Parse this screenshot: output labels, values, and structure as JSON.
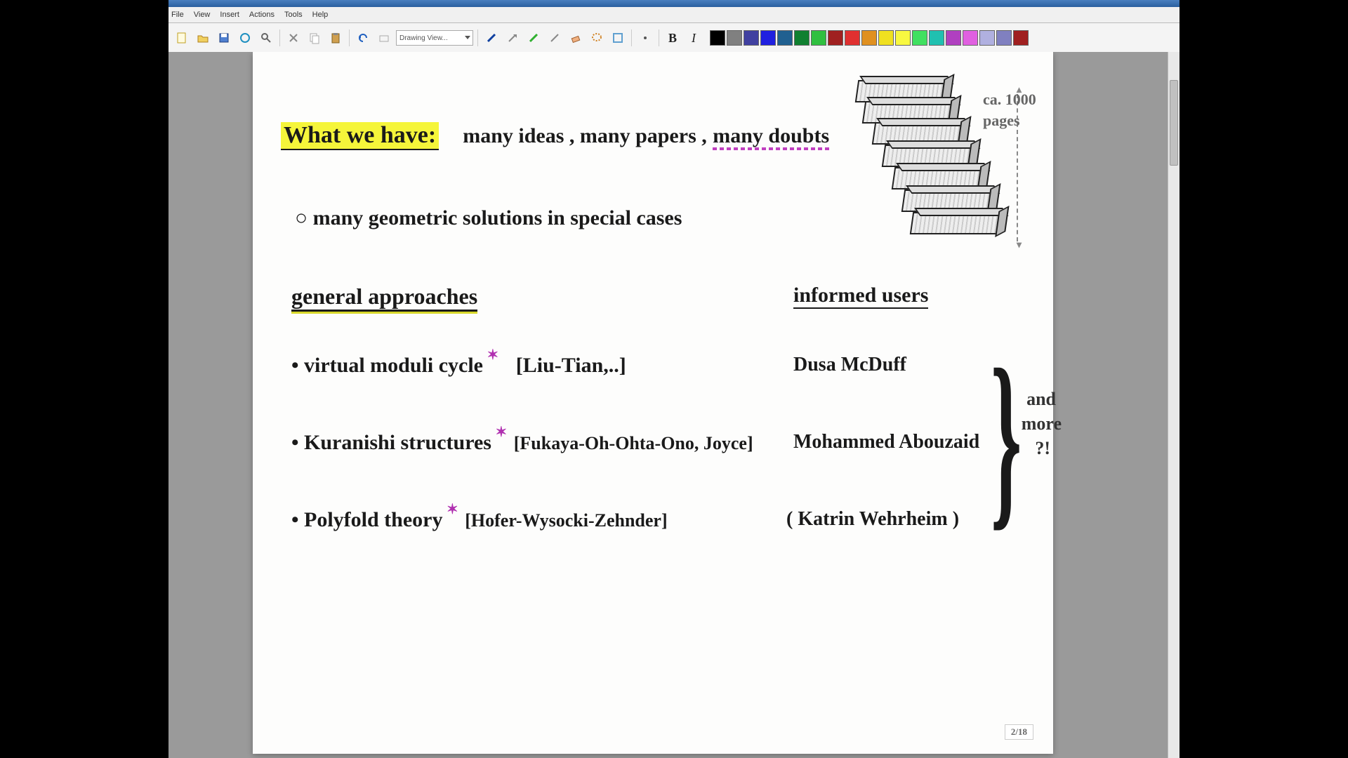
{
  "menu": {
    "items": [
      "File",
      "View",
      "Insert",
      "Actions",
      "Tools",
      "Help"
    ]
  },
  "toolbar": {
    "combo_label": "Drawing View...",
    "bold": "B",
    "italic": "I",
    "swatches": [
      "#000000",
      "#808080",
      "#4040a0",
      "#2020e0",
      "#206090",
      "#108030",
      "#30c040",
      "#a02020",
      "#e03030",
      "#e09020",
      "#f0e020",
      "#f8f840",
      "#40e060",
      "#20c0b0",
      "#b040c0",
      "#e060e0",
      "#b0b0e0",
      "#8080c0",
      "#a02020"
    ]
  },
  "notes": {
    "heading": "What we have:",
    "heading_rest": "many ideas , many papers ,",
    "heading_doubts": "many doubts",
    "bullet1": "○ many geometric solutions in special cases",
    "col_left_title": "general approaches",
    "col_right_title": "informed users",
    "row1_l": "• virtual moduli cycle",
    "row1_ref": "[Liu-Tian,..]",
    "row1_r": "Dusa McDuff",
    "row2_l": "• Kuranishi structures",
    "row2_ref": "[Fukaya-Oh-Ohta-Ono, Joyce]",
    "row2_r": "Mohammed Abouzaid",
    "row3_l": "• Polyfold theory",
    "row3_ref": "[Hofer-Wysocki-Zehnder]",
    "row3_r": "( Katrin Wehrheim )",
    "books_label_1": "ca. 1000",
    "books_label_2": "pages",
    "brace_note_1": "and",
    "brace_note_2": "more",
    "brace_note_3": "?!",
    "page_number": "2/18"
  }
}
